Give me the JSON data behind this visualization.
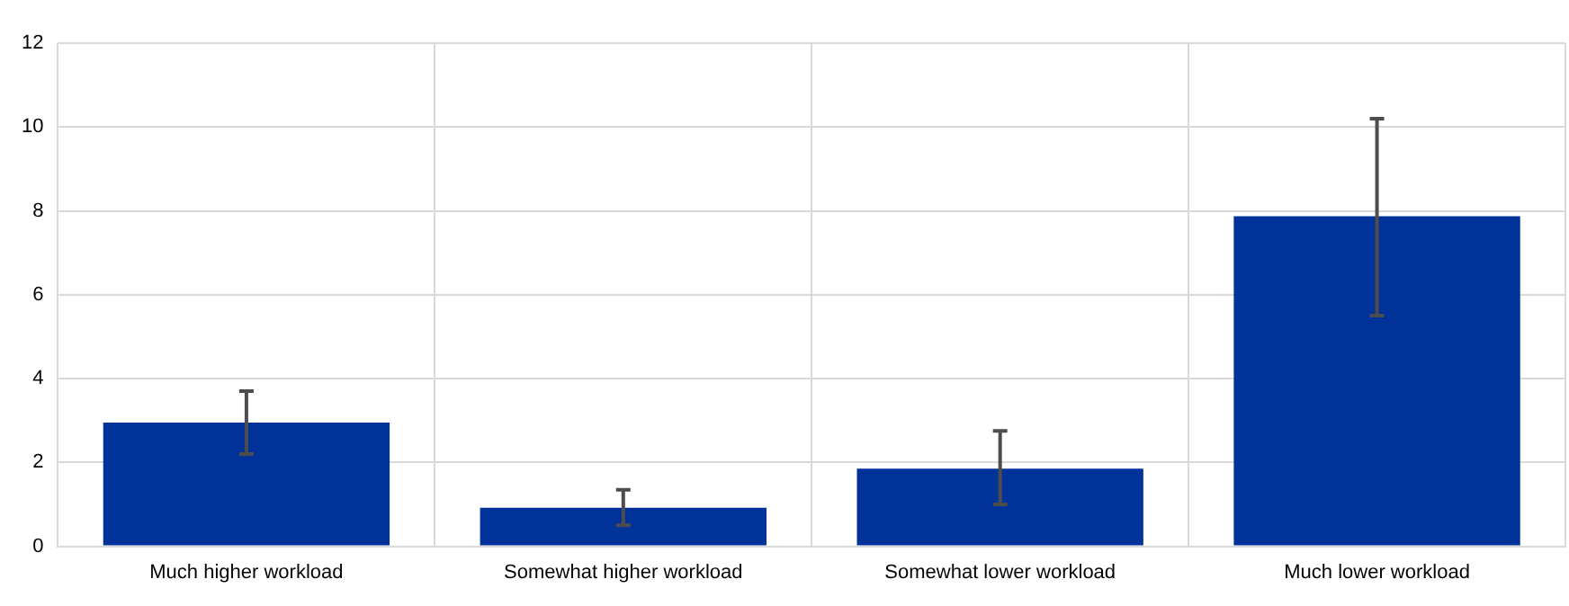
{
  "chart_data": {
    "type": "bar",
    "categories": [
      "Much higher workload",
      "Somewhat higher workload",
      "Somewhat lower workload",
      "Much lower workload"
    ],
    "series": [
      {
        "color": "#003299",
        "values": [
          2.95,
          0.92,
          1.85,
          7.87
        ],
        "errors": [
          [
            2.2,
            3.7
          ],
          [
            0.5,
            1.35
          ],
          [
            1.0,
            2.75
          ],
          [
            5.5,
            10.2
          ]
        ]
      }
    ],
    "ylim": [
      0,
      12
    ],
    "yticks": [
      0,
      2,
      4,
      6,
      8,
      10,
      12
    ],
    "grid": true,
    "legend": false
  }
}
